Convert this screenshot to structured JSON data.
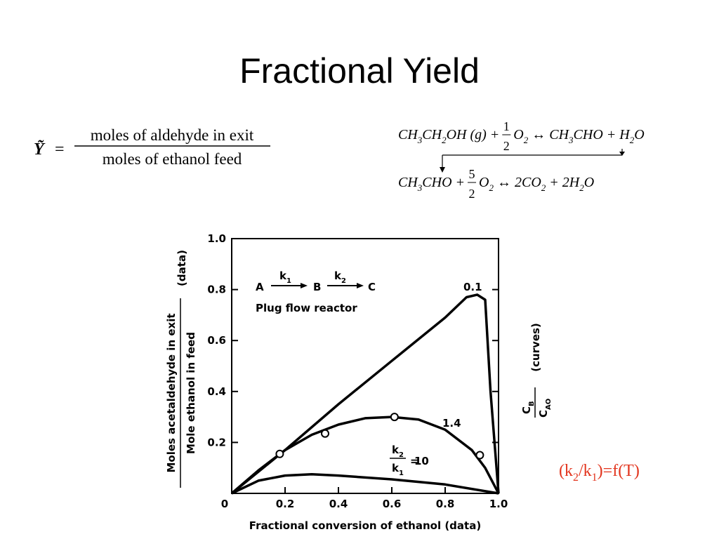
{
  "title": "Fractional Yield",
  "definition": {
    "symbol": "Ỹ",
    "equals": "=",
    "numerator": "moles of aldehyde in exit",
    "denominator": "moles of ethanol feed"
  },
  "reactions": [
    {
      "left": [
        "CH",
        "3",
        "CH",
        "2",
        "OH (g) +"
      ],
      "coef": {
        "num": "1",
        "den": "2"
      },
      "right": [
        "O",
        "2",
        " ↔ CH",
        "3",
        "CHO + H",
        "2",
        "O"
      ]
    },
    {
      "left": [
        "CH",
        "3",
        "CHO +"
      ],
      "coef": {
        "num": "5",
        "den": "2"
      },
      "right": [
        "O",
        "2",
        " ↔ 2CO",
        "2",
        " + 2H",
        "2",
        "O"
      ]
    }
  ],
  "note": [
    "(k",
    "2",
    "/k",
    "1",
    ")=f(T)"
  ],
  "chart_data": {
    "type": "line",
    "xlabel": "Fractional conversion of ethanol (data)",
    "ylabel": {
      "numerator": "Moles acetaldehyde in exit",
      "denominator": "Mole ethanol in feed",
      "suffix": "(data)"
    },
    "y2label": {
      "numerator": [
        "C",
        "B"
      ],
      "denominator": [
        "C",
        "AO"
      ],
      "suffix": "(curves)"
    },
    "inset": {
      "a": "A",
      "k1": [
        "k",
        "1"
      ],
      "b": "B",
      "k2": [
        "k",
        "2"
      ],
      "c": "C",
      "caption": "Plug flow reactor"
    },
    "ratio_label": {
      "num": [
        "k",
        "2"
      ],
      "den": [
        "k",
        "1"
      ],
      "eq": "="
    },
    "xlim": [
      0,
      1
    ],
    "ylim": [
      0,
      1
    ],
    "xticks": [
      0,
      0.2,
      0.4,
      0.6,
      0.8,
      {
        "value": 1,
        "label": "1.0"
      }
    ],
    "yticks": [
      0.2,
      0.4,
      0.6,
      0.8,
      {
        "value": 1,
        "label": "1.0"
      }
    ],
    "series": [
      {
        "name": "0.1",
        "color": "#000000",
        "x": [
          0,
          0.2,
          0.4,
          0.6,
          0.8,
          0.88,
          0.92,
          0.95,
          0.97,
          1
        ],
        "values": [
          0,
          0.17,
          0.35,
          0.52,
          0.69,
          0.77,
          0.78,
          0.76,
          0.4,
          0
        ]
      },
      {
        "name": "1.4",
        "color": "#000000",
        "x": [
          0,
          0.1,
          0.2,
          0.3,
          0.4,
          0.5,
          0.6,
          0.7,
          0.8,
          0.9,
          0.95,
          1
        ],
        "values": [
          0,
          0.09,
          0.17,
          0.23,
          0.27,
          0.295,
          0.3,
          0.29,
          0.25,
          0.17,
          0.1,
          0
        ]
      },
      {
        "name": "10",
        "color": "#000000",
        "x": [
          0,
          0.1,
          0.2,
          0.3,
          0.4,
          0.6,
          0.8,
          1
        ],
        "values": [
          0,
          0.05,
          0.07,
          0.075,
          0.07,
          0.055,
          0.035,
          0
        ]
      }
    ],
    "data_points": {
      "x": [
        0.18,
        0.35,
        0.61,
        0.93
      ],
      "values": [
        0.155,
        0.235,
        0.3,
        0.15
      ]
    }
  }
}
